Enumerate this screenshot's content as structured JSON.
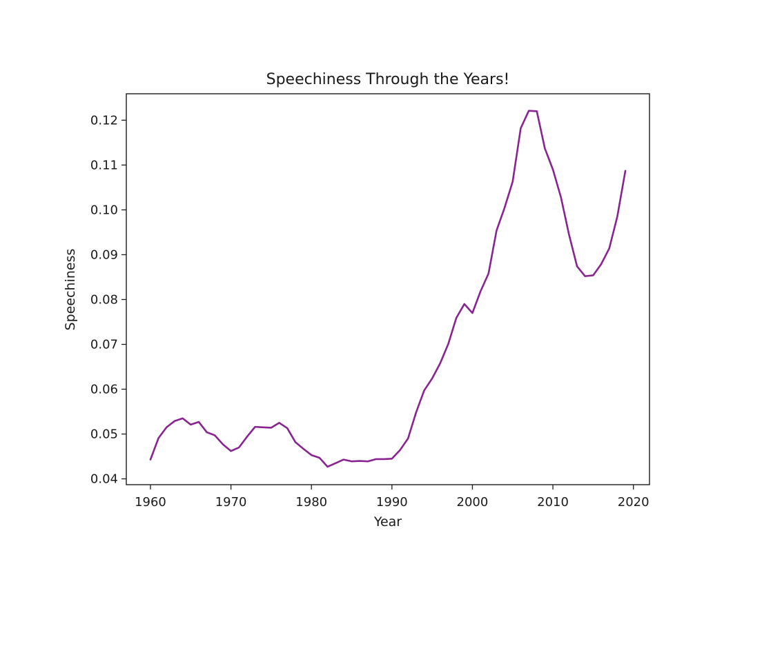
{
  "chart_data": {
    "type": "line",
    "title": "Speechiness Through the Years!",
    "xlabel": "Year",
    "ylabel": "Speechiness",
    "xlim": [
      1957,
      2022
    ],
    "ylim": [
      0.0387,
      0.1259
    ],
    "xticks": [
      1960,
      1970,
      1980,
      1990,
      2000,
      2010,
      2020
    ],
    "xtick_labels": [
      "1960",
      "1970",
      "1980",
      "1990",
      "2000",
      "2010",
      "2020"
    ],
    "yticks": [
      0.04,
      0.05,
      0.06,
      0.07,
      0.08,
      0.09,
      0.1,
      0.11,
      0.12
    ],
    "ytick_labels": [
      "0.04",
      "0.05",
      "0.06",
      "0.07",
      "0.08",
      "0.09",
      "0.10",
      "0.11",
      "0.12"
    ],
    "grid": false,
    "series": [
      {
        "color": "#882391",
        "x": [
          1960,
          1961,
          1962,
          1963,
          1964,
          1965,
          1966,
          1967,
          1968,
          1969,
          1970,
          1971,
          1972,
          1973,
          1974,
          1975,
          1976,
          1977,
          1978,
          1979,
          1980,
          1981,
          1982,
          1983,
          1984,
          1985,
          1986,
          1987,
          1988,
          1989,
          1990,
          1991,
          1992,
          1993,
          1994,
          1995,
          1996,
          1997,
          1998,
          1999,
          2000,
          2001,
          2002,
          2003,
          2004,
          2005,
          2006,
          2007,
          2008,
          2009,
          2010,
          2011,
          2012,
          2013,
          2014,
          2015,
          2016,
          2017,
          2018,
          2019
        ],
        "y": [
          0.0443,
          0.0491,
          0.0515,
          0.0529,
          0.0535,
          0.0521,
          0.0527,
          0.0504,
          0.0497,
          0.0477,
          0.0462,
          0.047,
          0.0494,
          0.0516,
          0.0515,
          0.0514,
          0.0525,
          0.0513,
          0.0482,
          0.0467,
          0.0453,
          0.0447,
          0.0427,
          0.0435,
          0.0443,
          0.0439,
          0.044,
          0.0439,
          0.0444,
          0.0444,
          0.0445,
          0.0464,
          0.049,
          0.0548,
          0.0597,
          0.0624,
          0.0658,
          0.0701,
          0.0759,
          0.079,
          0.077,
          0.0818,
          0.0858,
          0.0954,
          0.1005,
          0.1063,
          0.1182,
          0.1221,
          0.122,
          0.1137,
          0.109,
          0.1028,
          0.0945,
          0.0874,
          0.0852,
          0.0854,
          0.0879,
          0.0914,
          0.0985,
          0.1087
        ]
      }
    ]
  }
}
